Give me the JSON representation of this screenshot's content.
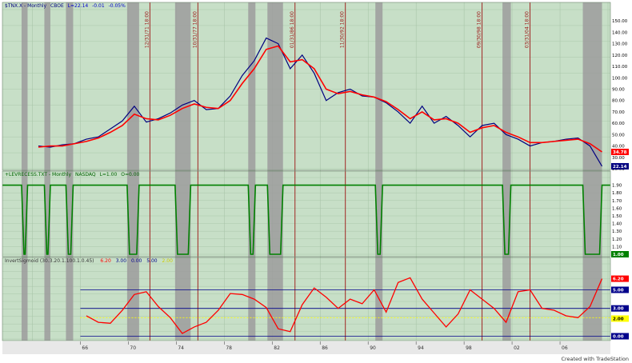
{
  "colors": {
    "background": "#c7dfc7",
    "grid": "#a4c2a4",
    "recession_band": "#9c9c9c",
    "event_line": "#9c1313",
    "price": "#000080",
    "average": "#ff0000",
    "indicator": "#008000",
    "oscillator": "#ff0000",
    "threshold_blue": "#00008b",
    "threshold_yellow": "#ffff00"
  },
  "credit": "Created with TradeStation",
  "chart_data": [
    {
      "type": "line",
      "panel": "price",
      "header": [
        "$TNX.X - Monthly",
        "CBOE",
        "L=22.14",
        "-0.01",
        "-0.05%"
      ],
      "x": [
        "1962",
        "1963",
        "1964",
        "1965",
        "1966",
        "1967",
        "1968",
        "1969",
        "1970",
        "1971",
        "1972",
        "1973",
        "1974",
        "1975",
        "1976",
        "1977",
        "1978",
        "1979",
        "1980",
        "1981",
        "1982",
        "1983",
        "1984",
        "1985",
        "1986",
        "1987",
        "1988",
        "1989",
        "1990",
        "1991",
        "1992",
        "1993",
        "1994",
        "1995",
        "1996",
        "1997",
        "1998",
        "1999",
        "2000",
        "2001",
        "2002",
        "2003",
        "2004",
        "2005",
        "2006",
        "2007",
        "2008",
        "2009"
      ],
      "series": [
        {
          "values": [
            40,
            39,
            41,
            42,
            46,
            48,
            55,
            62,
            75,
            61,
            64,
            69,
            76,
            80,
            72,
            73,
            84,
            102,
            115,
            135,
            130,
            108,
            120,
            104,
            80,
            87,
            90,
            84,
            83,
            78,
            70,
            60,
            75,
            60,
            66,
            58,
            48,
            58,
            60,
            50,
            46,
            40,
            43,
            44,
            46,
            47,
            40,
            22.14
          ]
        },
        {
          "values": [
            39,
            40,
            40,
            42,
            44,
            47,
            52,
            58,
            68,
            64,
            63,
            67,
            73,
            77,
            74,
            73,
            80,
            95,
            108,
            125,
            128,
            114,
            116,
            108,
            90,
            86,
            88,
            85,
            83,
            79,
            72,
            64,
            70,
            63,
            64,
            60,
            52,
            56,
            58,
            52,
            48,
            43,
            43,
            44,
            45,
            46,
            42,
            34.78
          ]
        }
      ],
      "price_labels": [
        "34.78",
        "22.14"
      ],
      "scale_labels": [
        "150.00",
        "140.00",
        "130.00",
        "120.00",
        "110.00",
        "100.00",
        "90.00",
        "80.00",
        "70.00",
        "60.00",
        "50.00",
        "40.00",
        "30.00",
        "20.00"
      ],
      "ylim": [
        20,
        160
      ]
    },
    {
      "type": "line",
      "panel": "recession",
      "header": [
        "+LEVRECESS.TXT - Monthly",
        "NASDAQ",
        "L=1.00",
        "O=0.00"
      ],
      "scale_labels": [
        "1.90",
        "1.80",
        "1.70",
        "1.60",
        "1.50",
        "1.40",
        "1.30",
        "1.20",
        "1.10",
        "1.00"
      ],
      "price_labels": [
        "1.00"
      ],
      "ylim": [
        1,
        2
      ],
      "recessions": [
        [
          1961.1,
          1961.6
        ],
        [
          1963.0,
          1963.5
        ],
        [
          1964.8,
          1965.4
        ],
        [
          1969.9,
          1970.9
        ],
        [
          1973.9,
          1975.2
        ],
        [
          1980.0,
          1980.6
        ],
        [
          1981.6,
          1982.9
        ],
        [
          1990.6,
          1991.2
        ],
        [
          2001.2,
          2001.9
        ],
        [
          2007.9,
          2009.5
        ]
      ]
    },
    {
      "type": "line",
      "panel": "oscillator",
      "header": [
        "InvertSigmoid (30.3.20.1.100.1.0.45)",
        "6.20",
        "3.00",
        "0.00",
        "5.00",
        "2.00"
      ],
      "series": [
        {
          "values": [
            0.5,
            0.5,
            0.5,
            1.5,
            2.2,
            1.5,
            1.4,
            2.8,
            4.5,
            4.8,
            3.2,
            2.0,
            0.3,
            1.0,
            1.5,
            2.8,
            4.6,
            4.5,
            4.0,
            3.1,
            0.8,
            0.5,
            3.4,
            5.2,
            4.2,
            3.0,
            4.0,
            3.5,
            5.0,
            2.6,
            5.8,
            6.3,
            4.0,
            2.5,
            1.0,
            2.4,
            5.0,
            4.0,
            3.0,
            1.5,
            4.8,
            5.0,
            3.0,
            2.8,
            2.2,
            2.0,
            3.2,
            6.2
          ]
        }
      ],
      "thresholds": [
        5.0,
        3.0,
        2.0,
        0.0
      ],
      "price_labels": [
        "6.20",
        "5.00",
        "3.00",
        "2.00",
        "0.00"
      ],
      "ylim": [
        -0.3,
        7.8
      ]
    }
  ],
  "x_ticks": [
    "66",
    "70",
    "74",
    "78",
    "82",
    "86",
    "90",
    "94",
    "98",
    "02",
    "06"
  ],
  "recession_bands": [
    [
      1961.1,
      1961.6
    ],
    [
      1963.0,
      1963.5
    ],
    [
      1964.8,
      1965.4
    ],
    [
      1969.9,
      1970.9
    ],
    [
      1973.9,
      1975.2
    ],
    [
      1980.0,
      1980.6
    ],
    [
      1981.6,
      1982.9
    ],
    [
      1990.6,
      1991.2
    ],
    [
      2001.2,
      2001.9
    ],
    [
      2007.9,
      2009.5
    ]
  ],
  "event_lines": [
    {
      "year": 1971.8,
      "label": "12/31/71 18:00"
    },
    {
      "year": 1975.8,
      "label": "10/31/77 18:00"
    },
    {
      "year": 1983.9,
      "label": "01/31/86 18:00"
    },
    {
      "year": 1988.1,
      "label": "11/30/92 18:00"
    },
    {
      "year": 1999.5,
      "label": "09/30/98 18:00"
    },
    {
      "year": 2003.5,
      "label": "03/31/04 18:00"
    }
  ]
}
